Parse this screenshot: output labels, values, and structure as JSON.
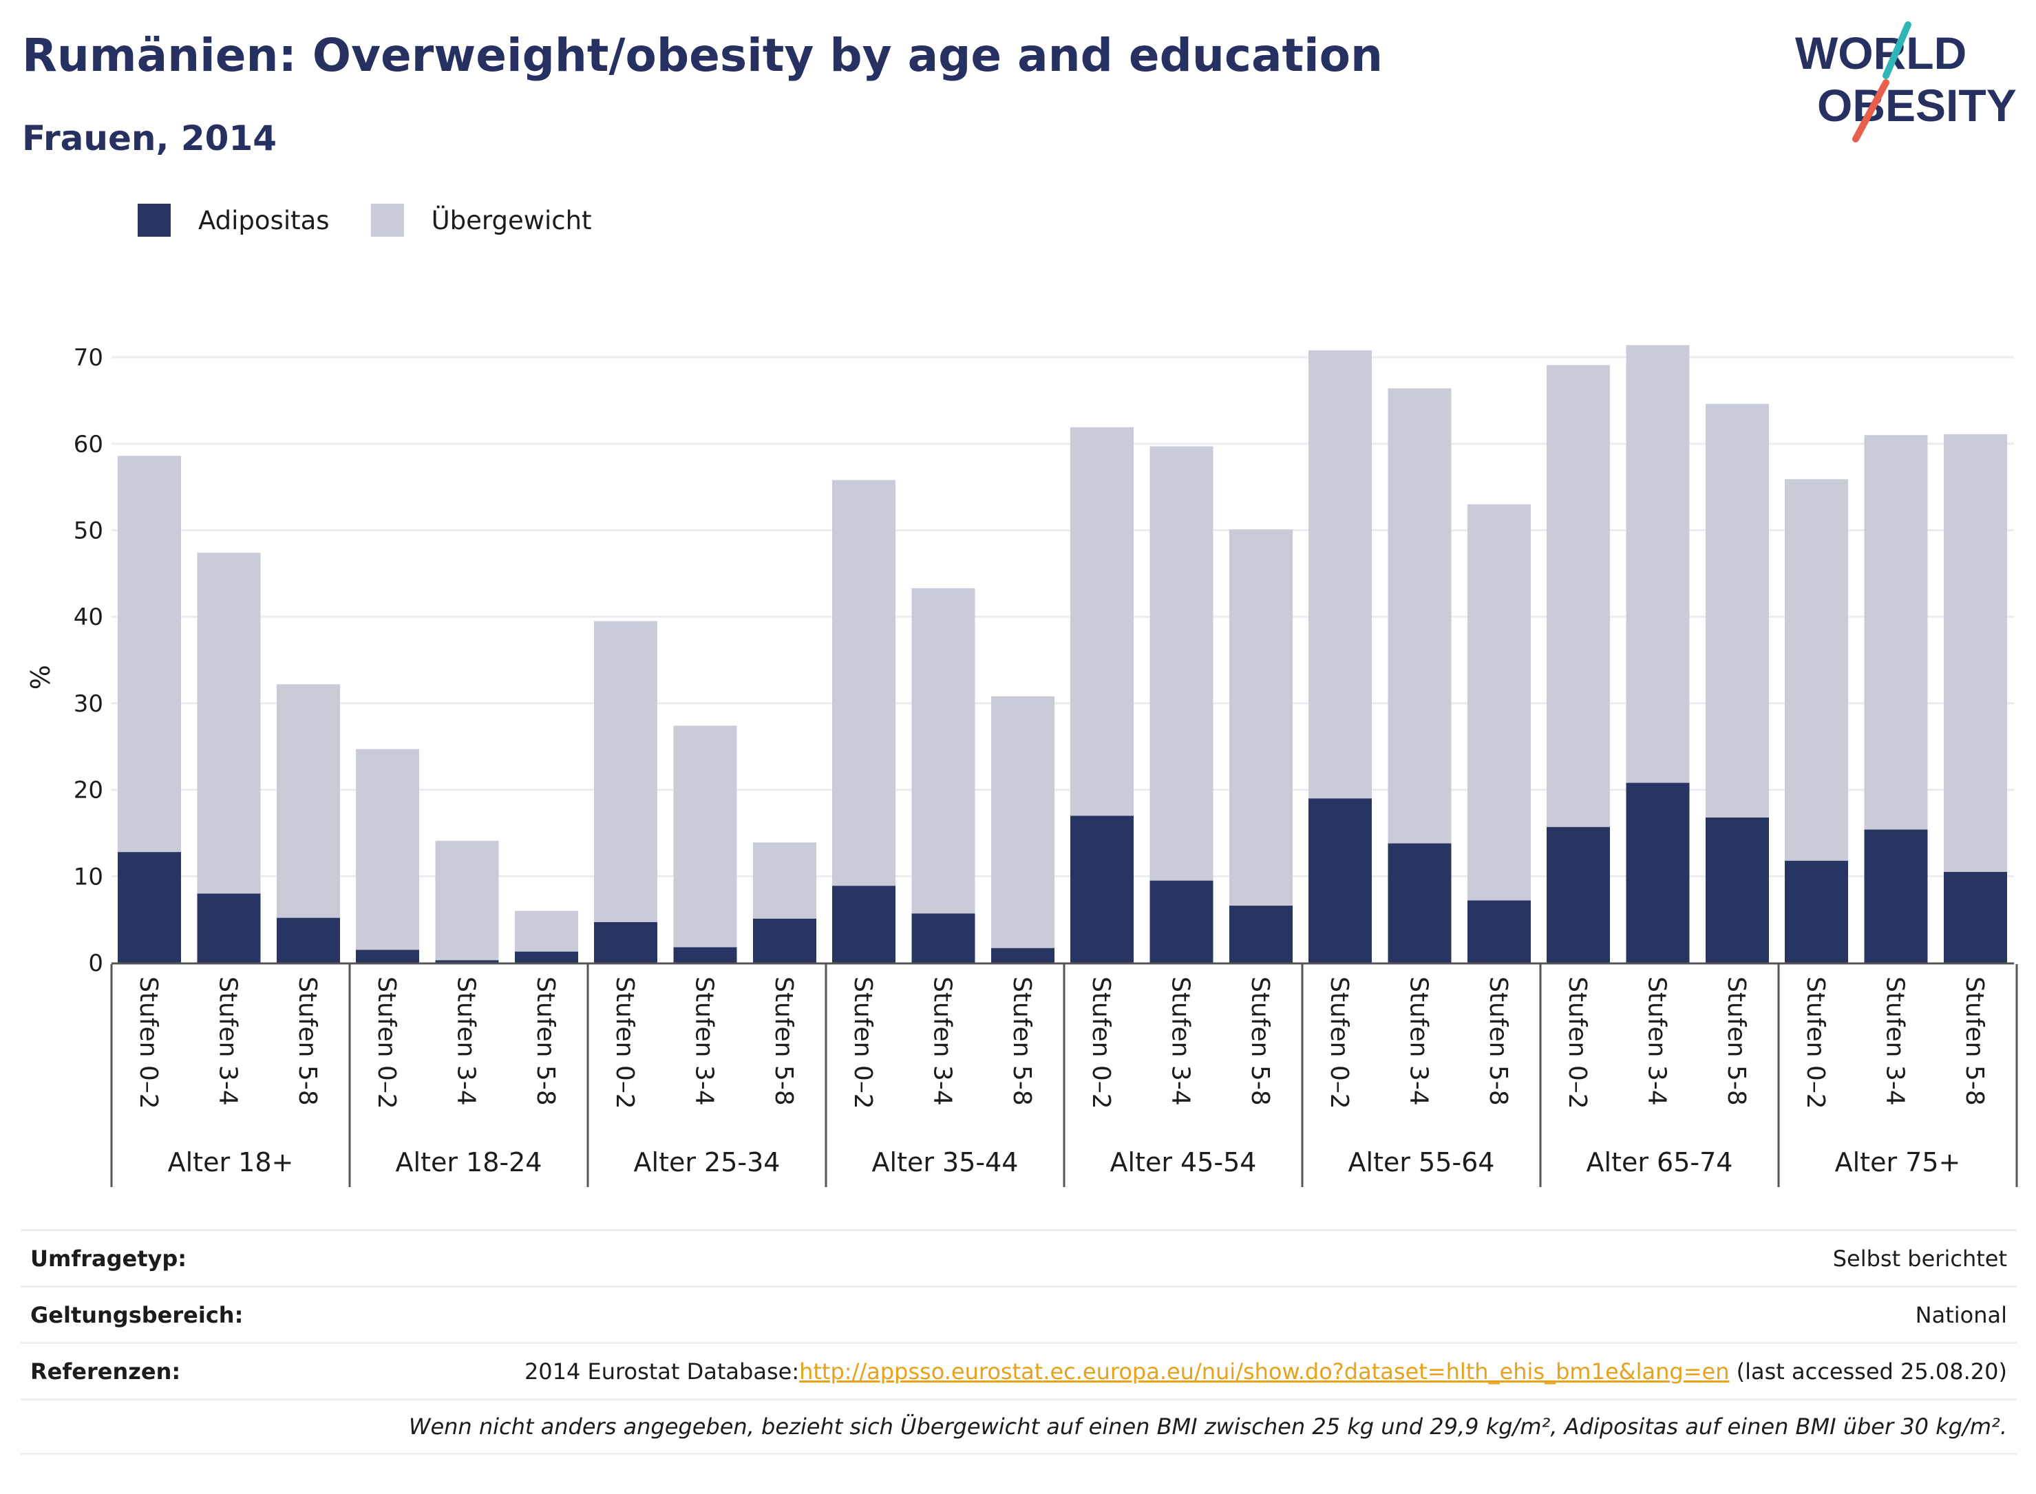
{
  "header": {
    "title": "Rumänien: Overweight/obesity by age and education",
    "subtitle": "Frauen, 2014"
  },
  "logo": {
    "line1": "WORLD",
    "line2": "OBESITY",
    "accent_colors": [
      "#2fb5b5",
      "#e8604c"
    ]
  },
  "legend": {
    "items": [
      {
        "label": "Adipositas",
        "color": "#283562"
      },
      {
        "label": "Übergewicht",
        "color": "#c9ccd8"
      }
    ]
  },
  "chart_data": {
    "type": "bar",
    "stacked": true,
    "ylabel": "%",
    "ylim": [
      0,
      74
    ],
    "yticks": [
      0,
      10,
      20,
      30,
      40,
      50,
      60,
      70
    ],
    "grid": true,
    "legend_position": "top-left",
    "groups": [
      "Alter 18+",
      "Alter 18-24",
      "Alter 25-34",
      "Alter 35-44",
      "Alter 45-54",
      "Alter 55-64",
      "Alter 65-74",
      "Alter 75+"
    ],
    "categories": [
      "Stufen 0–2",
      "Stufen 3-4",
      "Stufen 5-8"
    ],
    "series": [
      {
        "name": "Adipositas",
        "color": "#283562",
        "values": [
          [
            12.8,
            8.0,
            5.2
          ],
          [
            1.5,
            0.3,
            1.3
          ],
          [
            4.7,
            1.8,
            5.1
          ],
          [
            8.9,
            5.7,
            1.7
          ],
          [
            17.0,
            9.5,
            6.6
          ],
          [
            19.0,
            13.8,
            7.2
          ],
          [
            15.7,
            20.8,
            16.8
          ],
          [
            11.8,
            15.4,
            10.5
          ]
        ]
      },
      {
        "name": "Übergewicht",
        "color": "#c9ccd8",
        "values": [
          [
            45.8,
            39.4,
            27.0
          ],
          [
            23.2,
            13.8,
            4.7
          ],
          [
            34.8,
            25.6,
            8.8
          ],
          [
            46.9,
            37.6,
            29.1
          ],
          [
            44.9,
            50.2,
            43.5
          ],
          [
            51.8,
            52.6,
            45.8
          ],
          [
            53.4,
            50.6,
            47.8
          ],
          [
            44.1,
            45.6,
            50.6
          ]
        ]
      }
    ]
  },
  "meta": {
    "survey_type_label": "Umfragetyp:",
    "survey_type_value": "Selbst berichtet",
    "scope_label": "Geltungsbereich:",
    "scope_value": "National",
    "references_label": "Referenzen:",
    "references_prefix": "2014 Eurostat Database:",
    "references_link": "http://appsso.eurostat.ec.europa.eu/nui/show.do?dataset=hlth_ehis_bm1e&lang=en",
    "references_suffix": " (last accessed 25.08.20)",
    "note": "Wenn nicht anders angegeben, bezieht sich Übergewicht auf einen BMI zwischen 25 kg und 29,9 kg/m², Adipositas auf einen BMI über 30 kg/m²."
  }
}
